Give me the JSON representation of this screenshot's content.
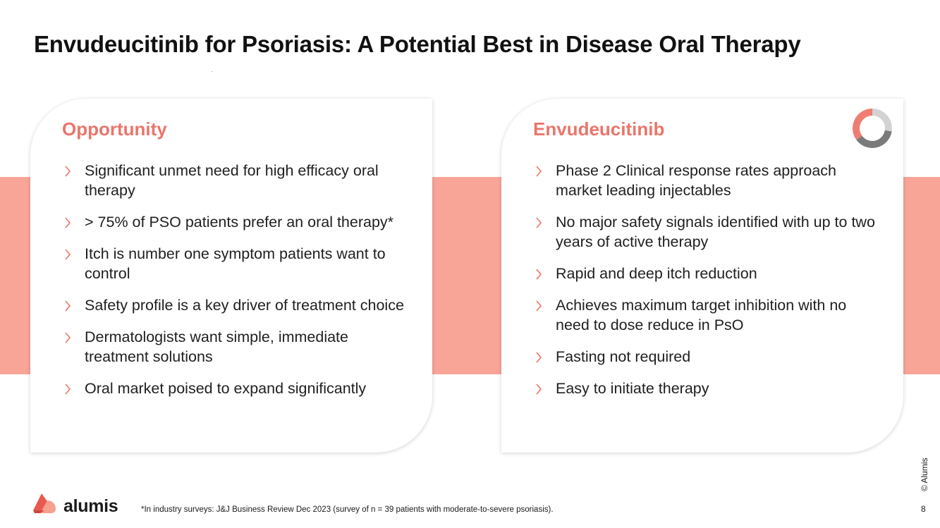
{
  "slide": {
    "title": "Envudeucitinib for Psoriasis: A Potential Best in Disease Oral Therapy",
    "page_number": "8",
    "copyright": "© Alumis",
    "footnote": "*In industry surveys: J&J Business Review Dec 2023 (survey of n = 39 patients with moderate-to-severe psoriasis).",
    "brand_name": "alumis"
  },
  "colors": {
    "accent": "#e9766b",
    "band": "#f8a597",
    "donut_pink": "#f07d72",
    "donut_light": "#cfcfcf",
    "donut_dark": "#7a7a7a"
  },
  "left_card": {
    "title": "Opportunity",
    "bullets": [
      "Significant unmet need for high efficacy oral therapy",
      "> 75% of PSO patients prefer an oral therapy*",
      "Itch is number one symptom patients want to control",
      "Safety profile is a key driver of treatment choice",
      "Dermatologists want simple, immediate treatment solutions",
      "Oral market poised to expand significantly"
    ]
  },
  "right_card": {
    "title": "Envudeucitinib",
    "icon": "donut-icon",
    "bullets": [
      "Phase 2 Clinical response rates approach market leading injectables",
      "No major safety signals identified with up to two years of active therapy",
      "Rapid and deep itch reduction",
      "Achieves maximum target inhibition with no need to dose reduce in PsO",
      "Fasting not required",
      "Easy to initiate therapy"
    ]
  }
}
